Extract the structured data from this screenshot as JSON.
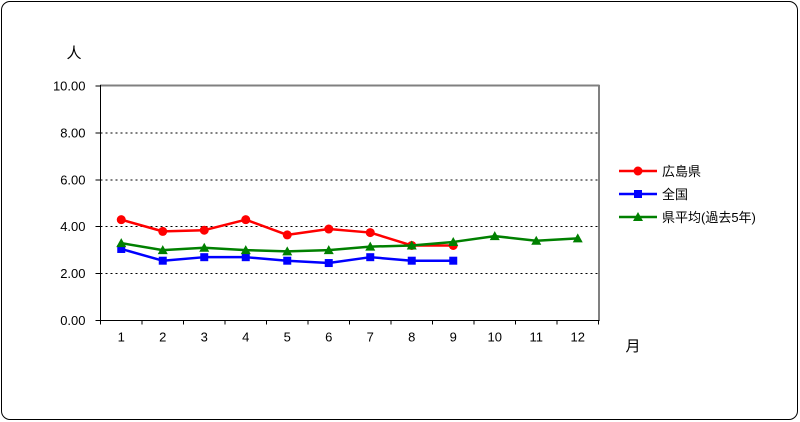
{
  "chart_data": {
    "type": "line",
    "title": "",
    "unit_label": "人",
    "x_axis_label": "月",
    "categories": [
      "1",
      "2",
      "3",
      "4",
      "5",
      "6",
      "7",
      "8",
      "9",
      "10",
      "11",
      "12"
    ],
    "ylim": [
      0,
      10
    ],
    "y_ticks": [
      {
        "value": 10,
        "label": "10.00"
      },
      {
        "value": 8,
        "label": "8.00"
      },
      {
        "value": 6,
        "label": "6.00"
      },
      {
        "value": 4,
        "label": "4.00"
      },
      {
        "value": 2,
        "label": "2.00"
      },
      {
        "value": 0,
        "label": "0.00"
      }
    ],
    "grid": "horizontal-dashed",
    "legend_position": "right",
    "colors": {
      "hiroshima": "#ff0000",
      "national": "#0000ff",
      "pref_average": "#008000",
      "plot_border_gray": "#808080"
    },
    "series": [
      {
        "name": "広島県",
        "color": "#ff0000",
        "marker": "circle",
        "values": [
          4.3,
          3.8,
          3.85,
          4.3,
          3.65,
          3.9,
          3.75,
          3.2,
          3.2
        ]
      },
      {
        "name": "全国",
        "color": "#0000ff",
        "marker": "square",
        "values": [
          3.05,
          2.55,
          2.7,
          2.7,
          2.55,
          2.45,
          2.7,
          2.55,
          2.55
        ]
      },
      {
        "name": "県平均(過去5年)",
        "color": "#008000",
        "marker": "triangle",
        "values": [
          3.3,
          3.0,
          3.1,
          3.0,
          2.95,
          3.0,
          3.15,
          3.2,
          3.35,
          3.6,
          3.4,
          3.5
        ]
      }
    ]
  }
}
